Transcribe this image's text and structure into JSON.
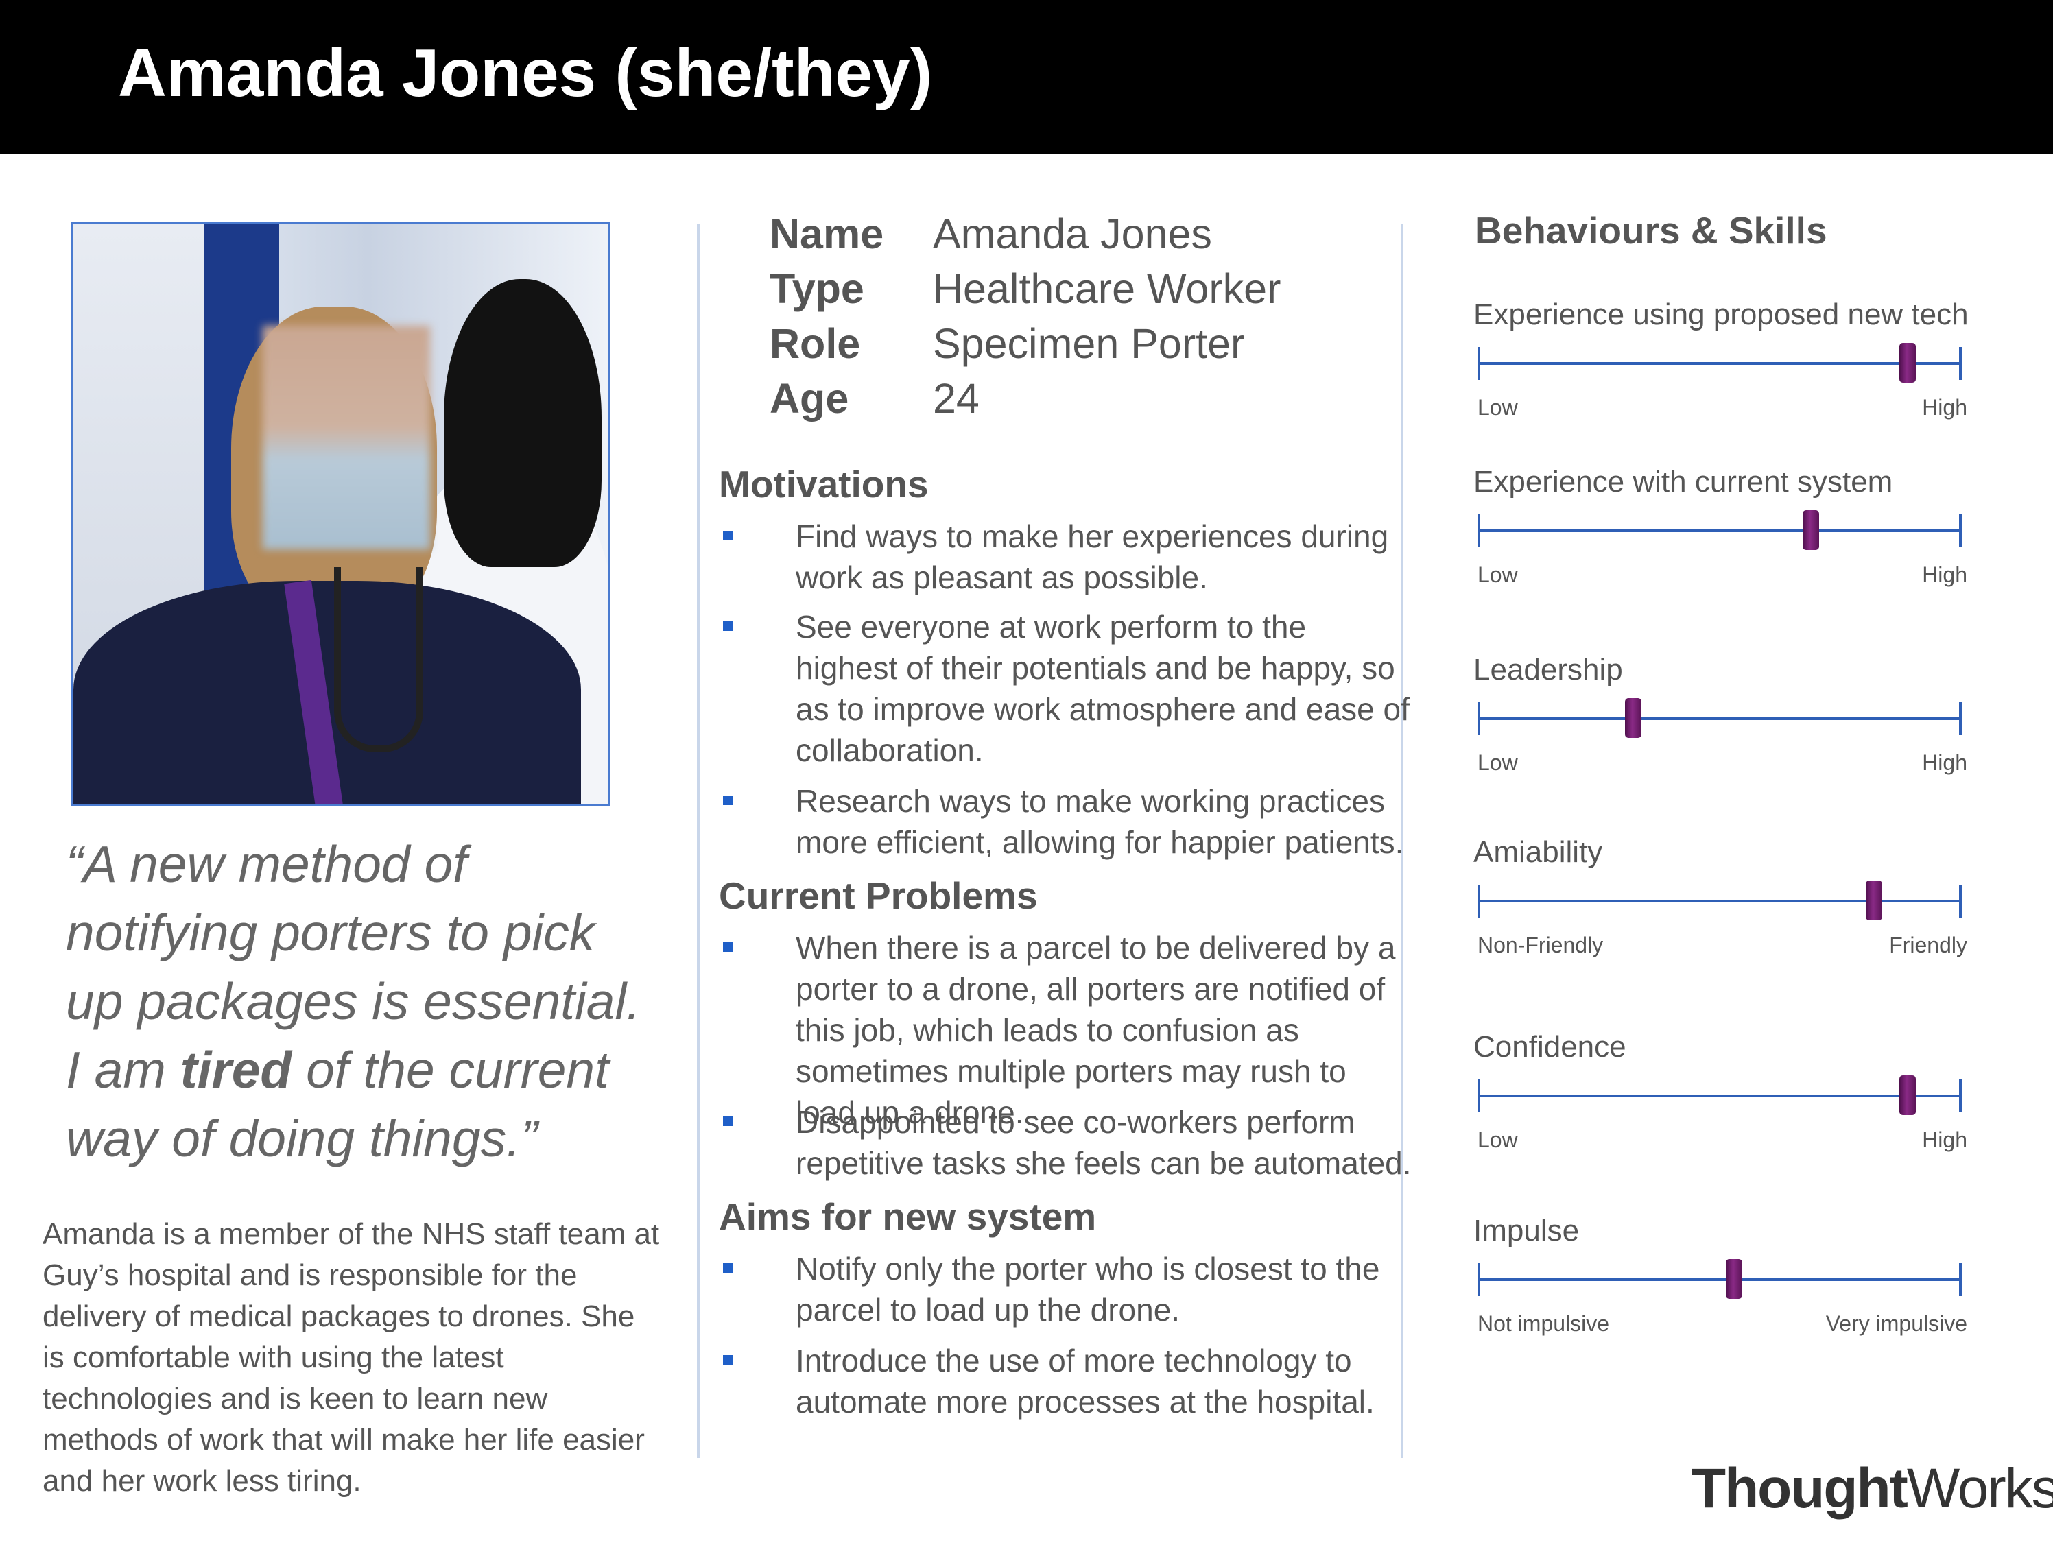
{
  "header": {
    "title": "Amanda Jones (she/they)"
  },
  "quote": {
    "before": "“A new method of notifying porters to pick up packages is essential. I am ",
    "emphasis": "tired",
    "after": " of the current way of doing things.”"
  },
  "bio": "Amanda is a member of the NHS staff team at Guy’s hospital and is responsible for the delivery of medical packages to drones. She is comfortable with using the latest technologies and is keen to learn new methods of work that will make her life easier and her work less tiring.",
  "profile": [
    {
      "key": "Name",
      "value": "Amanda Jones"
    },
    {
      "key": "Type",
      "value": "Healthcare Worker"
    },
    {
      "key": "Role",
      "value": "Specimen Porter"
    },
    {
      "key": "Age",
      "value": "24"
    }
  ],
  "sections": {
    "motivations": {
      "title": "Motivations",
      "items": [
        "Find ways to make her experiences during work as pleasant as possible.",
        "See everyone at work perform to the highest of their potentials and be happy, so as to improve work atmosphere and ease of collaboration.",
        "Research ways to make working practices more efficient, allowing for happier patients."
      ]
    },
    "problems": {
      "title": "Current Problems",
      "items": [
        "When there is a parcel to be delivered by a porter to a drone, all porters are notified of this job, which leads to confusion as sometimes multiple porters may rush to load up a drone.",
        "Disappointed to see co-workers perform repetitive tasks she feels can be automated."
      ]
    },
    "aims": {
      "title": "Aims for new system",
      "items": [
        "Notify only the porter who is closest to the parcel to load up the drone.",
        "Introduce the use of more technology to automate more processes at the hospital."
      ]
    }
  },
  "behaviours": {
    "title": "Behaviours & Skills",
    "skills": [
      {
        "label": "Experience using proposed new tech",
        "low": "Low",
        "high": "High",
        "level": 0.89
      },
      {
        "label": "Experience with current system",
        "low": "Low",
        "high": "High",
        "level": 0.69
      },
      {
        "label": "Leadership",
        "low": "Low",
        "high": "High",
        "level": 0.32
      },
      {
        "label": "Amiability",
        "low": "Non-Friendly",
        "high": "Friendly",
        "level": 0.82
      },
      {
        "label": "Confidence",
        "low": "Low",
        "high": "High",
        "level": 0.89
      },
      {
        "label": "Impulse",
        "low": "Not impulsive",
        "high": "Very impulsive",
        "level": 0.53
      }
    ],
    "thumb_color": "#7a1f78",
    "track_color": "#2f5fb6"
  },
  "logo": {
    "bold": "Thought",
    "regular": "Works",
    "mark": "®"
  }
}
